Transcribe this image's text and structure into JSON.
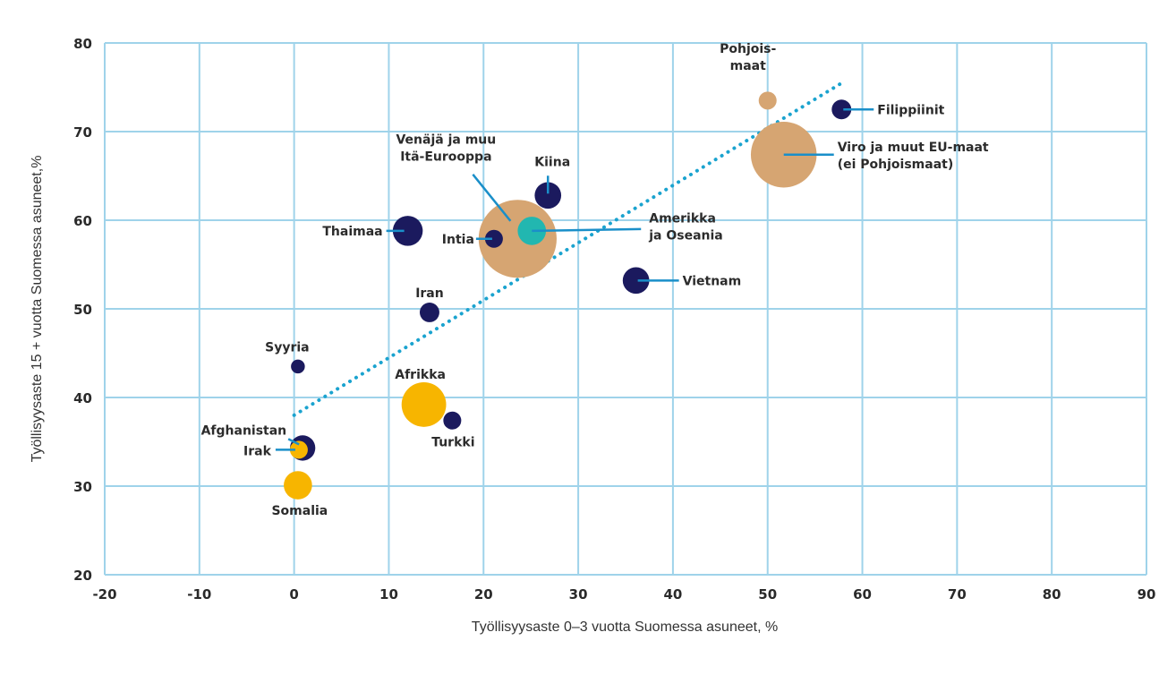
{
  "chart_data": {
    "type": "scatter",
    "subtype": "bubble",
    "title": "",
    "xlabel": "Työllisyysaste 0–3 vuotta Suomessa asuneet, %",
    "ylabel": "Työllisyysaste 15 + vuotta Suomessa asuneet,%",
    "xlim": [
      -20,
      90
    ],
    "ylim": [
      20,
      80
    ],
    "xticks": [
      "-20",
      "-10",
      "0",
      "10",
      "20",
      "30",
      "40",
      "50",
      "60",
      "70",
      "80",
      "90"
    ],
    "yticks": [
      "20",
      "30",
      "40",
      "50",
      "60",
      "70",
      "80"
    ],
    "grid": true,
    "colors": {
      "grid": "#9fd3ea",
      "navy": "#1b1a5e",
      "tan": "#d6a572",
      "yellow": "#f7b500",
      "teal": "#22b7b0",
      "leader": "#1a8fc9",
      "trend": "#1aa3cf"
    },
    "trendline": {
      "x": [
        0,
        58
      ],
      "y": [
        38,
        75.6
      ]
    },
    "points": [
      {
        "name": "Pohjoismaat",
        "label": [
          "Pohjois-",
          "maat"
        ],
        "x": 50,
        "y": 73.5,
        "size": 1,
        "color": "tan"
      },
      {
        "name": "Filippiinit",
        "label": [
          "Filippiinit"
        ],
        "x": 57.8,
        "y": 72.5,
        "size": 1.2,
        "color": "navy"
      },
      {
        "name": "Viro ja muut EU-maat",
        "label": [
          "Viro ja muut EU-maat",
          "(ei Pohjoismaat)"
        ],
        "x": 51.7,
        "y": 67.4,
        "size": 13.5,
        "color": "tan"
      },
      {
        "name": "Venäjä ja muu Itä-Eurooppa",
        "label": [
          "Venäjä ja muu",
          "Itä-Eurooppa"
        ],
        "x": 23.6,
        "y": 57.9,
        "size": 19,
        "color": "tan"
      },
      {
        "name": "Kiina",
        "label": [
          "Kiina"
        ],
        "x": 26.8,
        "y": 62.8,
        "size": 2.2,
        "color": "navy"
      },
      {
        "name": "Amerikka ja Oseania",
        "label": [
          "Amerikka",
          "ja Oseania"
        ],
        "x": 25.1,
        "y": 58.8,
        "size": 2.5,
        "color": "teal"
      },
      {
        "name": "Thaimaa",
        "label": [
          "Thaimaa"
        ],
        "x": 12.0,
        "y": 58.8,
        "size": 2.8,
        "color": "navy"
      },
      {
        "name": "Intia",
        "label": [
          "Intia"
        ],
        "x": 21.1,
        "y": 57.9,
        "size": 1,
        "color": "navy"
      },
      {
        "name": "Vietnam",
        "label": [
          "Vietnam"
        ],
        "x": 36.1,
        "y": 53.2,
        "size": 2.2,
        "color": "navy"
      },
      {
        "name": "Iran",
        "label": [
          "Iran"
        ],
        "x": 14.3,
        "y": 49.6,
        "size": 1.2,
        "color": "navy"
      },
      {
        "name": "Syyria",
        "label": [
          "Syyria"
        ],
        "x": 0.4,
        "y": 43.5,
        "size": 0.6,
        "color": "navy"
      },
      {
        "name": "Afrikka",
        "label": [
          "Afrikka"
        ],
        "x": 13.7,
        "y": 39.2,
        "size": 6.2,
        "color": "yellow"
      },
      {
        "name": "Turkki",
        "label": [
          "Turkki"
        ],
        "x": 16.7,
        "y": 37.4,
        "size": 1,
        "color": "navy"
      },
      {
        "name": "Afghanistan",
        "label": [
          "Afghanistan"
        ],
        "x": 0.9,
        "y": 34.3,
        "size": 2,
        "color": "navy"
      },
      {
        "name": "Irak",
        "label": [
          "Irak"
        ],
        "x": 0.5,
        "y": 34.1,
        "size": 1,
        "color": "yellow"
      },
      {
        "name": "Somalia",
        "label": [
          "Somalia"
        ],
        "x": 0.4,
        "y": 30.1,
        "size": 2.5,
        "color": "yellow"
      }
    ]
  }
}
